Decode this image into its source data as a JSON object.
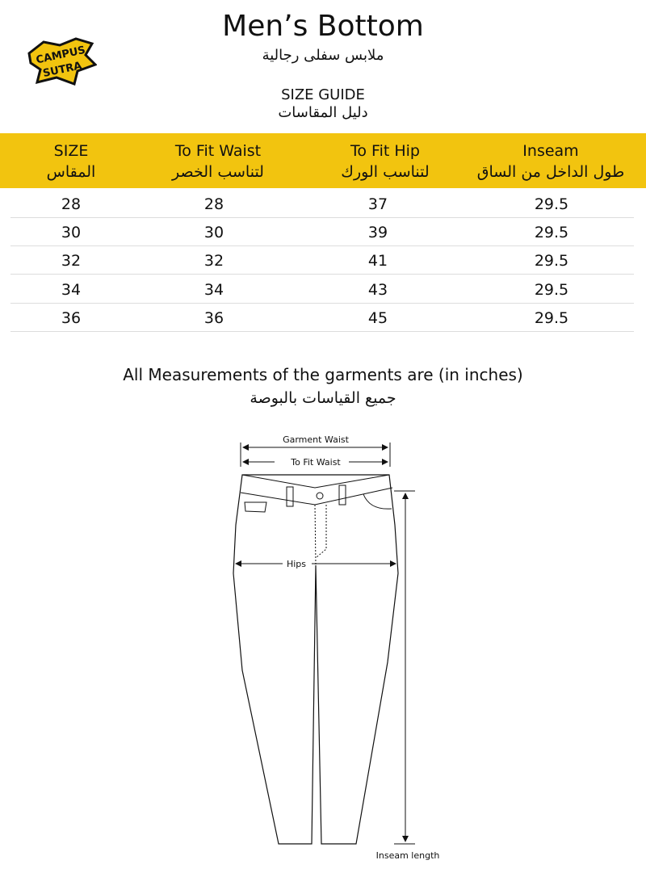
{
  "header": {
    "title": "Men’s Bottom",
    "title_ar": "ملابس سفلى رجالية",
    "subtitle": "SIZE GUIDE",
    "subtitle_ar": "دليل المقاسات",
    "logo_text": "CAMPUS SUTRA"
  },
  "colors": {
    "accent": "#F2C40F"
  },
  "table": {
    "columns": [
      {
        "en": "SIZE",
        "ar": "المقاس"
      },
      {
        "en": "To Fit Waist",
        "ar": "لتناسب الخصر"
      },
      {
        "en": "To Fit Hip",
        "ar": "لتناسب الورك"
      },
      {
        "en": "Inseam",
        "ar": "طول الداخل من الساق"
      }
    ],
    "rows": [
      [
        "28",
        "28",
        "37",
        "29.5"
      ],
      [
        "30",
        "30",
        "39",
        "29.5"
      ],
      [
        "32",
        "32",
        "41",
        "29.5"
      ],
      [
        "34",
        "34",
        "43",
        "29.5"
      ],
      [
        "36",
        "36",
        "45",
        "29.5"
      ]
    ]
  },
  "note": {
    "en": "All Measurements of the garments are (in inches)",
    "ar": "جميع القياسات بالبوصة"
  },
  "diagram": {
    "garment_waist": "Garment Waist",
    "to_fit_waist": "To Fit Waist",
    "hips": "Hips",
    "inseam": "Inseam length"
  }
}
